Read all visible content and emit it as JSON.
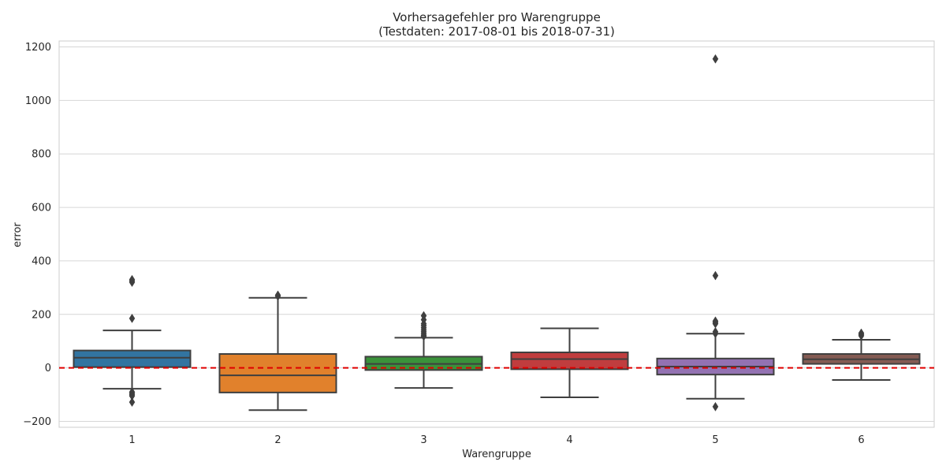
{
  "chart_data": {
    "type": "box",
    "title": "Vorhersagefehler pro Warengruppe",
    "subtitle": "(Testdaten: 2017-08-01 bis 2018-07-31)",
    "xlabel": "Warengruppe",
    "ylabel": "error",
    "ylim": [
      -222,
      1222
    ],
    "yticks": [
      -200,
      0,
      200,
      400,
      600,
      800,
      1000,
      1200
    ],
    "grid": true,
    "reference_line": {
      "y": 0,
      "color": "#e00000",
      "style": "dashed"
    },
    "categories": [
      "1",
      "2",
      "3",
      "4",
      "5",
      "6"
    ],
    "boxes": [
      {
        "category": "1",
        "color": "#3274a1",
        "whisker_low": -78,
        "q1": 3,
        "median": 38,
        "q3": 65,
        "whisker_high": 140,
        "outliers": [
          -90,
          -95,
          -100,
          -105,
          -128,
          185,
          320,
          325,
          330
        ]
      },
      {
        "category": "2",
        "color": "#e1812c",
        "whisker_low": -158,
        "q1": -92,
        "median": -28,
        "q3": 52,
        "whisker_high": 262,
        "outliers": [
          268,
          272
        ]
      },
      {
        "category": "3",
        "color": "#3a923a",
        "whisker_low": -75,
        "q1": -8,
        "median": 15,
        "q3": 42,
        "whisker_high": 113,
        "outliers": [
          118,
          122,
          128,
          135,
          142,
          150,
          158,
          165,
          180,
          195
        ]
      },
      {
        "category": "4",
        "color": "#c03d3e",
        "whisker_low": -110,
        "q1": -5,
        "median": 33,
        "q3": 58,
        "whisker_high": 148,
        "outliers": []
      },
      {
        "category": "5",
        "color": "#9372b2",
        "whisker_low": -115,
        "q1": -25,
        "median": 5,
        "q3": 35,
        "whisker_high": 128,
        "outliers": [
          -145,
          128,
          135,
          165,
          170,
          175,
          345,
          1155
        ]
      },
      {
        "category": "6",
        "color": "#845b53",
        "whisker_low": -45,
        "q1": 15,
        "median": 32,
        "q3": 52,
        "whisker_high": 105,
        "outliers": [
          120,
          125,
          130
        ]
      }
    ]
  }
}
